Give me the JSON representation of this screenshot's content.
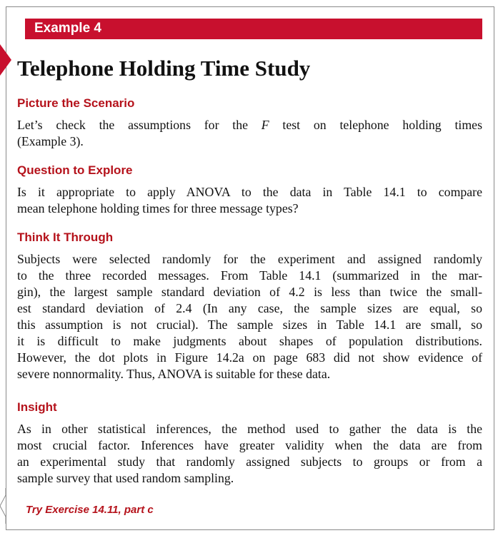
{
  "banner": {
    "label": "Example 4"
  },
  "title": "Telephone Holding Time Study",
  "sections": {
    "scenario": {
      "heading": "Picture the Scenario",
      "lines": [
        "Let’s check the assumptions for the F test on telephone holding times",
        "(Example 3)."
      ]
    },
    "question": {
      "heading": "Question to Explore",
      "lines": [
        "Is it appropriate to apply ANOVA to the data in Table 14.1 to compare",
        "mean telephone holding times for three message types?"
      ]
    },
    "think": {
      "heading": "Think It Through",
      "lines": [
        "Subjects were selected randomly for the experiment and assigned randomly",
        "to the three recorded messages. From Table 14.1 (summarized in the mar-",
        "gin), the largest sample standard deviation of 4.2 is less than twice the small-",
        "est standard deviation of 2.4 (In any case, the sample sizes are equal, so",
        "this assumption is not crucial). The sample sizes in Table 14.1 are small, so",
        "it is difficult to make judgments about shapes of population distributions.",
        "However, the dot plots in Figure 14.2a on page 683 did not show evidence of",
        "severe nonnormality. Thus, ANOVA is suitable for these data."
      ]
    },
    "insight": {
      "heading": "Insight",
      "lines": [
        "As in other statistical inferences, the method used to gather the data is the",
        "most crucial factor. Inferences have greater validity when the data are from",
        "an experimental study that randomly assigned subjects to groups or from a",
        "sample survey that used random sampling."
      ]
    }
  },
  "try_exercise": "Try Exercise 14.11, part c",
  "colors": {
    "accent": "#c8102e",
    "heading": "#b5121b",
    "frame": "#8a8a8a"
  }
}
